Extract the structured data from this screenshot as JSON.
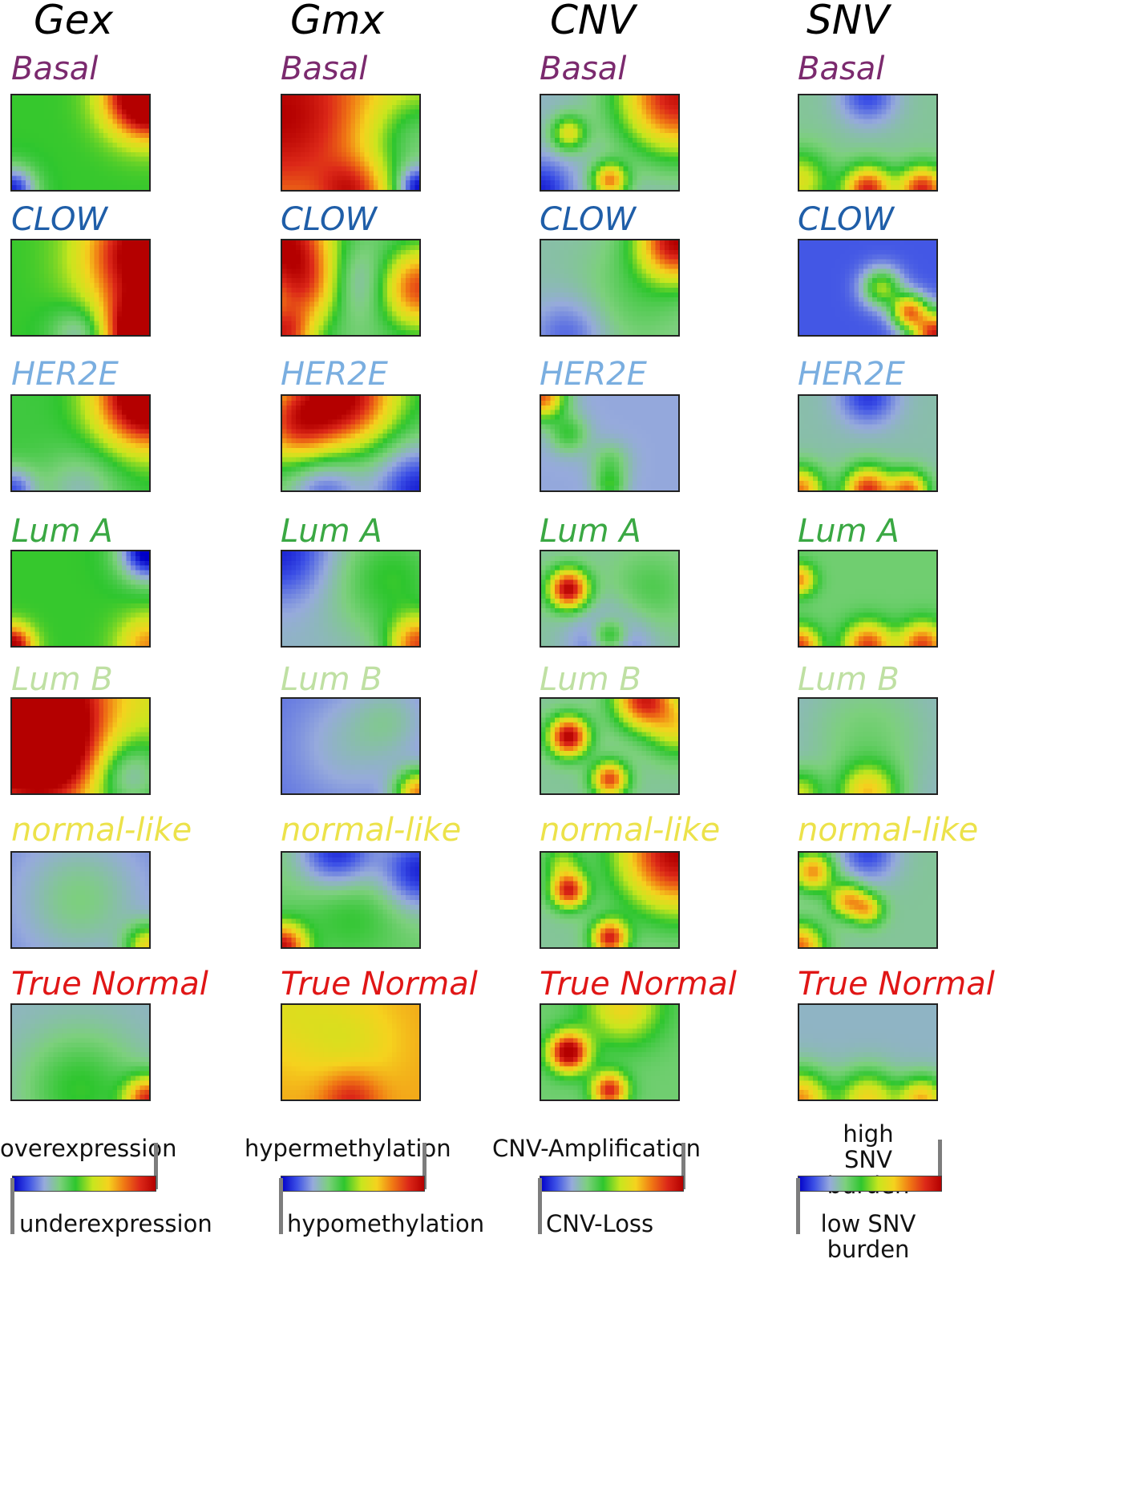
{
  "columns": [
    {
      "key": "gex",
      "title": "Gex"
    },
    {
      "key": "gmx",
      "title": "Gmx"
    },
    {
      "key": "cnv",
      "title": "CNV"
    },
    {
      "key": "snv",
      "title": "SNV"
    }
  ],
  "rows": [
    {
      "label": "Basal",
      "color": "#7b2a6e"
    },
    {
      "label": "CLOW",
      "color": "#1f5ea8"
    },
    {
      "label": "HER2E",
      "color": "#7aaee0"
    },
    {
      "label": "Lum A",
      "color": "#3aa843"
    },
    {
      "label": "Lum B",
      "color": "#bfe0a3"
    },
    {
      "label": "normal-like",
      "color": "#ece24a"
    },
    {
      "label": "True Normal",
      "color": "#e01616"
    }
  ],
  "colormap": [
    "#0000c8",
    "#3c50e6",
    "#96aadc",
    "#7cd07c",
    "#2ec62e",
    "#c8e61e",
    "#f5d21e",
    "#f07814",
    "#dc2818",
    "#b40000"
  ],
  "legends": [
    {
      "high": "overexpression",
      "low": "underexpression"
    },
    {
      "high": "hypermethylation",
      "low": "hypomethylation"
    },
    {
      "high": "CNV-Amplification",
      "low": "CNV-Loss"
    },
    {
      "high": "high SNV burden",
      "low": "low SNV burden"
    }
  ],
  "maps": {
    "gex": [
      {
        "base": 0.45,
        "blobs": [
          [
            1,
            0,
            0.95,
            0.2
          ],
          [
            0,
            1,
            -0.4,
            0.12
          ]
        ]
      },
      {
        "base": 0.45,
        "blobs": [
          [
            1,
            0.15,
            0.7,
            0.3
          ],
          [
            1,
            1,
            0.9,
            0.2
          ],
          [
            0.5,
            1,
            -0.2,
            0.15
          ]
        ]
      },
      {
        "base": 0.42,
        "blobs": [
          [
            1,
            0,
            0.85,
            0.25
          ],
          [
            0,
            1,
            -0.3,
            0.12
          ],
          [
            0.5,
            1,
            -0.15,
            0.2
          ]
        ]
      },
      {
        "base": 0.45,
        "blobs": [
          [
            1,
            0,
            -0.5,
            0.15
          ],
          [
            0,
            1,
            0.6,
            0.1
          ],
          [
            1,
            1,
            0.3,
            0.15
          ]
        ]
      },
      {
        "base": 0.55,
        "blobs": [
          [
            0,
            0,
            0.95,
            0.4
          ],
          [
            0.25,
            0.6,
            0.45,
            0.25
          ],
          [
            0.85,
            0.8,
            -0.3,
            0.2
          ]
        ]
      },
      {
        "base": 0.18,
        "blobs": [
          [
            0.5,
            0.5,
            0.15,
            0.3
          ],
          [
            1,
            1,
            0.45,
            0.12
          ]
        ]
      },
      {
        "base": 0.25,
        "blobs": [
          [
            0.5,
            0.9,
            0.2,
            0.3
          ],
          [
            1,
            1,
            0.6,
            0.12
          ]
        ]
      }
    ],
    "gmx": [
      {
        "base": 0.7,
        "blobs": [
          [
            0,
            0.2,
            0.3,
            0.4
          ],
          [
            1,
            0.5,
            -0.35,
            0.3
          ],
          [
            0.5,
            1,
            0.25,
            0.15
          ],
          [
            1,
            1,
            -0.5,
            0.12
          ]
        ]
      },
      {
        "base": 0.35,
        "blobs": [
          [
            0,
            0,
            0.6,
            0.25
          ],
          [
            0.2,
            0.5,
            0.4,
            0.2
          ],
          [
            1,
            0.5,
            0.5,
            0.2
          ],
          [
            0.5,
            0.45,
            -0.2,
            0.2
          ],
          [
            0,
            1,
            0.5,
            0.15
          ]
        ]
      },
      {
        "base": 0.4,
        "blobs": [
          [
            0.45,
            0,
            0.6,
            0.25
          ],
          [
            0.1,
            0.3,
            0.4,
            0.2
          ],
          [
            1,
            1,
            -0.35,
            0.25
          ],
          [
            0.3,
            1,
            -0.25,
            0.2
          ]
        ]
      },
      {
        "base": 0.25,
        "blobs": [
          [
            0,
            0,
            -0.2,
            0.25
          ],
          [
            0.8,
            0.3,
            0.2,
            0.3
          ],
          [
            1,
            1,
            0.55,
            0.15
          ]
        ]
      },
      {
        "base": 0.15,
        "blobs": [
          [
            0.5,
            0.5,
            0.1,
            0.3
          ],
          [
            1,
            1,
            0.6,
            0.12
          ],
          [
            0.8,
            0.2,
            0.1,
            0.2
          ]
        ]
      },
      {
        "base": 0.35,
        "blobs": [
          [
            0.4,
            0,
            -0.3,
            0.2
          ],
          [
            1,
            0.2,
            -0.3,
            0.2
          ],
          [
            0,
            1,
            0.6,
            0.12
          ],
          [
            0.5,
            0.6,
            0.1,
            0.25
          ]
        ]
      },
      {
        "base": 0.72,
        "blobs": [
          [
            0.5,
            0.4,
            -0.1,
            0.25
          ],
          [
            0.5,
            1,
            0.2,
            0.15
          ],
          [
            0,
            0,
            -0.1,
            0.3
          ]
        ]
      }
    ],
    "cnv": [
      {
        "base": 0.25,
        "blobs": [
          [
            1,
            0,
            0.7,
            0.3
          ],
          [
            0.2,
            0.4,
            0.35,
            0.09
          ],
          [
            0.5,
            0.9,
            0.5,
            0.09
          ],
          [
            0,
            1,
            -0.2,
            0.15
          ]
        ]
      },
      {
        "base": 0.28,
        "blobs": [
          [
            1,
            0,
            0.7,
            0.2
          ],
          [
            0.7,
            0.6,
            0.1,
            0.3
          ],
          [
            0.2,
            1,
            -0.15,
            0.2
          ]
        ]
      },
      {
        "base": 0.22,
        "blobs": [
          [
            0,
            0,
            0.6,
            0.12
          ],
          [
            0.2,
            0.4,
            0.2,
            0.1
          ],
          [
            0.5,
            0.7,
            0.15,
            0.1
          ],
          [
            0.5,
            0.95,
            0.2,
            0.08
          ]
        ]
      },
      {
        "base": 0.3,
        "blobs": [
          [
            0.2,
            0.4,
            0.7,
            0.1
          ],
          [
            0.5,
            0.9,
            0.3,
            0.09
          ],
          [
            0.8,
            0.4,
            0.1,
            0.2
          ],
          [
            0.5,
            1,
            -0.2,
            0.2
          ]
        ]
      },
      {
        "base": 0.3,
        "blobs": [
          [
            0.2,
            0.4,
            0.7,
            0.1
          ],
          [
            0.5,
            0.85,
            0.55,
            0.09
          ],
          [
            0.75,
            0,
            0.6,
            0.15
          ],
          [
            1,
            0.3,
            0.3,
            0.15
          ]
        ]
      },
      {
        "base": 0.3,
        "blobs": [
          [
            1,
            0,
            0.7,
            0.3
          ],
          [
            0.2,
            0.4,
            0.6,
            0.09
          ],
          [
            0.5,
            0.9,
            0.6,
            0.09
          ],
          [
            0.15,
            0.1,
            0.2,
            0.1
          ]
        ]
      },
      {
        "base": 0.35,
        "blobs": [
          [
            0.2,
            0.5,
            0.7,
            0.1
          ],
          [
            0.5,
            0.9,
            0.55,
            0.09
          ],
          [
            0.6,
            0,
            0.3,
            0.2
          ]
        ]
      }
    ],
    "snv": [
      {
        "base": 0.3,
        "blobs": [
          [
            0.5,
            1,
            0.6,
            0.12
          ],
          [
            0.9,
            1,
            0.6,
            0.12
          ],
          [
            0,
            0.9,
            0.3,
            0.15
          ],
          [
            0.5,
            0,
            -0.2,
            0.15
          ]
        ]
      },
      {
        "base": 0.12,
        "blobs": [
          [
            0.6,
            0.5,
            0.4,
            0.1
          ],
          [
            0.8,
            0.75,
            0.6,
            0.09
          ],
          [
            1,
            1,
            0.8,
            0.12
          ]
        ]
      },
      {
        "base": 0.28,
        "blobs": [
          [
            0.5,
            1,
            0.6,
            0.12
          ],
          [
            0.8,
            1,
            0.5,
            0.1
          ],
          [
            0,
            1,
            0.5,
            0.12
          ],
          [
            0.5,
            0,
            -0.2,
            0.15
          ]
        ]
      },
      {
        "base": 0.35,
        "blobs": [
          [
            0,
            0.3,
            0.4,
            0.08
          ],
          [
            0.5,
            1,
            0.5,
            0.12
          ],
          [
            0.9,
            1,
            0.5,
            0.12
          ],
          [
            0,
            1,
            0.5,
            0.1
          ]
        ]
      },
      {
        "base": 0.25,
        "blobs": [
          [
            0.5,
            0.4,
            0.1,
            0.3
          ],
          [
            0.5,
            1,
            0.4,
            0.15
          ],
          [
            0,
            1,
            0.3,
            0.12
          ]
        ]
      },
      {
        "base": 0.3,
        "blobs": [
          [
            0.1,
            0.2,
            0.45,
            0.1
          ],
          [
            0.35,
            0.5,
            0.4,
            0.09
          ],
          [
            0.5,
            0.6,
            0.35,
            0.08
          ],
          [
            0,
            1,
            0.5,
            0.12
          ],
          [
            0.5,
            0,
            -0.2,
            0.15
          ]
        ]
      },
      {
        "base": 0.25,
        "blobs": [
          [
            0,
            1,
            0.5,
            0.15
          ],
          [
            0.5,
            1,
            0.4,
            0.15
          ],
          [
            0.9,
            1,
            0.45,
            0.12
          ]
        ]
      }
    ]
  }
}
